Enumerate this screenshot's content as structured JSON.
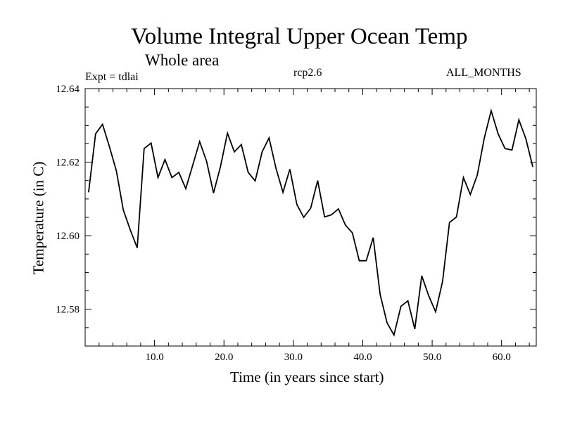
{
  "chart_data": {
    "type": "line",
    "title": "Volume Integral Upper Ocean Temp",
    "subtitle": "Whole area",
    "experiment_label": "Expt = tdlai",
    "scenario_label": "rcp2.6",
    "period_label": "ALL_MONTHS",
    "xlabel": "Time (in years since start)",
    "ylabel": "Temperature (in C)",
    "xlim": [
      0,
      65
    ],
    "ylim": [
      12.57,
      12.64
    ],
    "xticks": [
      10,
      20,
      30,
      40,
      50,
      60
    ],
    "xtick_labels": [
      "10.0",
      "20.0",
      "30.0",
      "40.0",
      "50.0",
      "60.0"
    ],
    "yticks": [
      12.58,
      12.6,
      12.62,
      12.64
    ],
    "ytick_labels": [
      "12.58",
      "12.60",
      "12.62",
      "12.64"
    ],
    "grid": false,
    "series": [
      {
        "name": "Volume Integral Upper Ocean Temp",
        "color": "#000000",
        "x": [
          0.5,
          1.5,
          2.5,
          3.5,
          4.5,
          5.5,
          6.5,
          7.5,
          8.5,
          9.5,
          10.5,
          11.5,
          12.5,
          13.5,
          14.5,
          15.5,
          16.5,
          17.5,
          18.5,
          19.5,
          20.5,
          21.5,
          22.5,
          23.5,
          24.5,
          25.5,
          26.5,
          27.5,
          28.5,
          29.5,
          30.5,
          31.5,
          32.5,
          33.5,
          34.5,
          35.5,
          36.5,
          37.5,
          38.5,
          39.5,
          40.5,
          41.5,
          42.5,
          43.5,
          44.5,
          45.5,
          46.5,
          47.5,
          48.5,
          49.5,
          50.5,
          51.5,
          52.5,
          53.5,
          54.5,
          55.5,
          56.5,
          57.5,
          58.5,
          59.5,
          60.5,
          61.5,
          62.5,
          63.5,
          64.5
        ],
        "values": [
          12.6118,
          12.6277,
          12.6303,
          12.6242,
          12.6176,
          12.607,
          12.6016,
          12.5967,
          12.6237,
          12.6252,
          12.6158,
          12.6207,
          12.6158,
          12.6172,
          12.6128,
          12.6192,
          12.6256,
          12.6202,
          12.6116,
          12.6188,
          12.6279,
          12.6228,
          12.6248,
          12.6172,
          12.6149,
          12.6228,
          12.6266,
          12.6183,
          12.6118,
          12.6181,
          12.6085,
          12.605,
          12.6075,
          12.615,
          12.6051,
          12.6057,
          12.6073,
          12.6029,
          12.6008,
          12.5932,
          12.5932,
          12.5995,
          12.5841,
          12.5763,
          12.573,
          12.5808,
          12.5823,
          12.5746,
          12.5891,
          12.5837,
          12.5793,
          12.5876,
          12.6036,
          12.6051,
          12.6158,
          12.6112,
          12.6165,
          12.6264,
          12.634,
          12.6277,
          12.6237,
          12.6233,
          12.6315,
          12.6264,
          12.6187
        ]
      }
    ]
  }
}
